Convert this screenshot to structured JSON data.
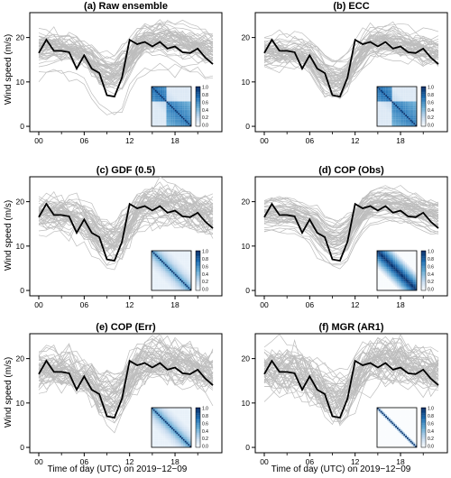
{
  "colors": {
    "ensemble": "#bdbdbd",
    "observation": "#000000",
    "frame": "#000000",
    "heat_low": "#ffffff",
    "heat_high": "#08306b"
  },
  "figure": {
    "xlabel": "Time of day (UTC) on 2019−12−09",
    "ylabel": "Wind speed (m/s)"
  },
  "chart_data": {
    "type": "line",
    "x_ticks": [
      "00",
      "06",
      "12",
      "18"
    ],
    "hours": [
      0,
      1,
      2,
      3,
      4,
      5,
      6,
      7,
      8,
      9,
      10,
      11,
      12,
      13,
      14,
      15,
      16,
      17,
      18,
      19,
      20,
      21,
      22,
      23
    ],
    "ylim": [
      0,
      24
    ],
    "y_ticks": [
      "0",
      "10",
      "20"
    ],
    "colorbar_ticks": [
      "1.0",
      "0.8",
      "0.6",
      "0.4",
      "0.2",
      "0.0"
    ],
    "observation": [
      16.5,
      19.5,
      17,
      17,
      16.7,
      13,
      16,
      13,
      12,
      7,
      6.7,
      11,
      19.5,
      18.5,
      19,
      18,
      19,
      17.5,
      18,
      16.7,
      16.5,
      17.5,
      15.5,
      14
    ],
    "panels": [
      {
        "title": "(a) Raw ensemble",
        "ensemble_spread": 3.0,
        "ensemble_jitter": 0.9,
        "correlation": "block"
      },
      {
        "title": "(b) ECC",
        "ensemble_spread": 3.0,
        "ensemble_jitter": 0.9,
        "correlation": "block"
      },
      {
        "title": "(c) GDF (0.5)",
        "ensemble_spread": 2.6,
        "ensemble_jitter": 1.3,
        "correlation": "diffuse"
      },
      {
        "title": "(d) COP (Obs)",
        "ensemble_spread": 3.0,
        "ensemble_jitter": 0.5,
        "correlation": "band"
      },
      {
        "title": "(e) COP (Err)",
        "ensemble_spread": 2.6,
        "ensemble_jitter": 1.6,
        "correlation": "diffuse"
      },
      {
        "title": "(f) MGR (AR1)",
        "ensemble_spread": 2.4,
        "ensemble_jitter": 1.8,
        "correlation": "ar1"
      }
    ]
  }
}
